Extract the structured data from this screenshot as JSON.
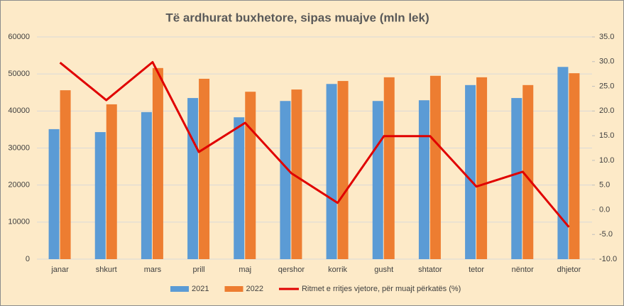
{
  "chart_data": {
    "type": "bar",
    "title": "Të ardhurat buxhetore, sipas muajve (mln lek)",
    "categories": [
      "janar",
      "shkurt",
      "mars",
      "prill",
      "maj",
      "qershor",
      "korrik",
      "gusht",
      "shtator",
      "tetor",
      "nëntor",
      "dhjetor"
    ],
    "series": [
      {
        "name": "2021",
        "type": "bar",
        "color": "#5b9bd5",
        "values": [
          35100,
          34300,
          39700,
          43500,
          38300,
          42700,
          47300,
          42700,
          42900,
          47000,
          43500,
          51900
        ]
      },
      {
        "name": "2022",
        "type": "bar",
        "color": "#ed7d31",
        "values": [
          45600,
          41800,
          51600,
          48700,
          45200,
          45800,
          48100,
          49100,
          49500,
          49100,
          47000,
          50200
        ]
      },
      {
        "name": "Ritmet e rritjes vjetore, për muajt përkatës (%)",
        "type": "line",
        "axis": "y2",
        "color": "#e00000",
        "values": [
          29.8,
          22.2,
          29.9,
          11.7,
          17.6,
          7.4,
          1.4,
          14.9,
          14.9,
          4.7,
          7.7,
          -3.5
        ]
      }
    ],
    "ylim": [
      0,
      60000
    ],
    "yticks": [
      0,
      10000,
      20000,
      30000,
      40000,
      50000,
      60000
    ],
    "y2lim": [
      -10,
      35
    ],
    "y2ticks": [
      {
        "value": -10,
        "label": "-10.0"
      },
      {
        "value": -5,
        "label": "-5.0"
      },
      {
        "value": 0,
        "label": "0.0"
      },
      {
        "value": 5,
        "label": "5.0"
      },
      {
        "value": 10,
        "label": "10.0"
      },
      {
        "value": 15,
        "label": "15.0"
      },
      {
        "value": 20,
        "label": "20.0"
      },
      {
        "value": 25,
        "label": "25.0"
      },
      {
        "value": 30,
        "label": "30.0"
      },
      {
        "value": 35,
        "label": "35.0"
      }
    ],
    "grid": true,
    "legend": "bottom"
  }
}
